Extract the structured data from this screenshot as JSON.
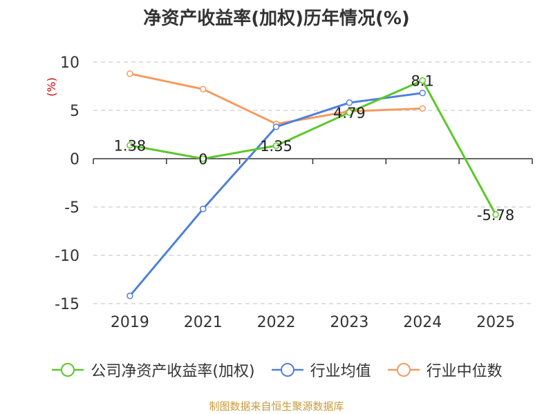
{
  "title": "净资产收益率(加权)历年情况(%)",
  "source_note": "制图数据来自恒生聚源数据库",
  "chart_data": {
    "type": "line",
    "title": "净资产收益率(加权)历年情况(%)",
    "ylabel": "(%)",
    "xlabel": "",
    "ylim": [
      -15,
      10
    ],
    "yticks": [
      10,
      5,
      0,
      -5,
      -10,
      -15
    ],
    "grid": true,
    "legend_position": "bottom",
    "categories": [
      "2019",
      "2021",
      "2022",
      "2023",
      "2024",
      "2025"
    ],
    "series": [
      {
        "name": "公司净资产收益率(加权)",
        "color": "#5cc72a",
        "values": [
          1.38,
          0,
          1.35,
          4.79,
          8.1,
          -5.78
        ],
        "labels": [
          "1.38",
          "0",
          "1.35",
          "4.79",
          "8.1",
          "-5.78"
        ]
      },
      {
        "name": "行业均值",
        "color": "#4f7fdb",
        "values": [
          -14.2,
          -5.2,
          3.3,
          5.8,
          6.8,
          null
        ]
      },
      {
        "name": "行业中位数",
        "color": "#f59a5f",
        "values": [
          8.8,
          7.2,
          3.6,
          4.9,
          5.2,
          null
        ]
      }
    ]
  }
}
